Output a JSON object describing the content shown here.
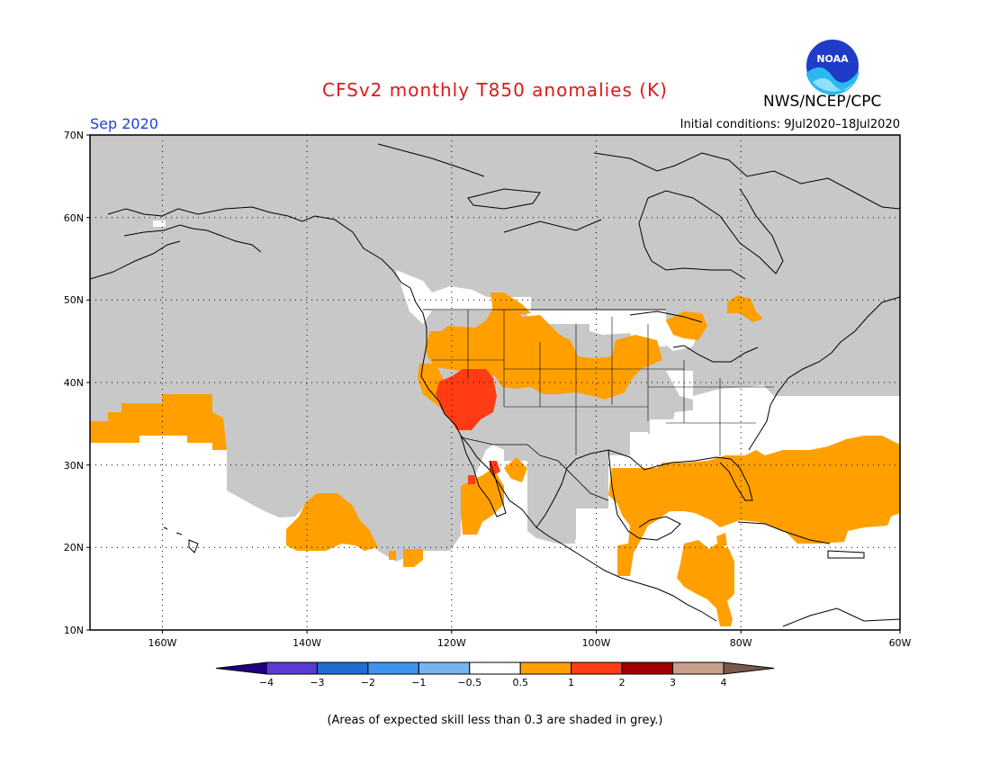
{
  "title": "CFSv2 monthly T850 anomalies (K)",
  "org": "NWS/NCEP/CPC",
  "logo_text": "NOAA",
  "month": "Sep 2020",
  "initial_conditions": "Initial conditions: 9Jul2020–18Jul2020",
  "map": {
    "lat_labels": [
      "70N",
      "60N",
      "50N",
      "40N",
      "30N",
      "20N",
      "10N"
    ],
    "lon_labels": [
      "160W",
      "140W",
      "120W",
      "100W",
      "80W",
      "60W"
    ],
    "extent": {
      "lon_min": -172,
      "lon_max": -60,
      "lat_min": 10,
      "lat_max": 70
    },
    "colors": {
      "grey_low_skill": "#c8c8c8",
      "land_white": "#ffffff",
      "orange_0_5_to_1": "#ffa000",
      "red_1_to_2": "#ff3c14"
    },
    "note": "Anomaly regions approximated from the figure"
  },
  "colorbar": {
    "levels": [
      "−4",
      "−3",
      "−2",
      "−1",
      "−0.5",
      "0.5",
      "1",
      "2",
      "3",
      "4"
    ],
    "colors": [
      "#1e0082",
      "#5a3cd2",
      "#1e6ed2",
      "#3c96f0",
      "#78b4f0",
      "#ffffff",
      "#ffa000",
      "#ff3c14",
      "#a00000",
      "#c8a08c",
      "#785a4b"
    ]
  },
  "footnote": "(Areas of expected skill less than 0.3 are shaded in grey.)"
}
